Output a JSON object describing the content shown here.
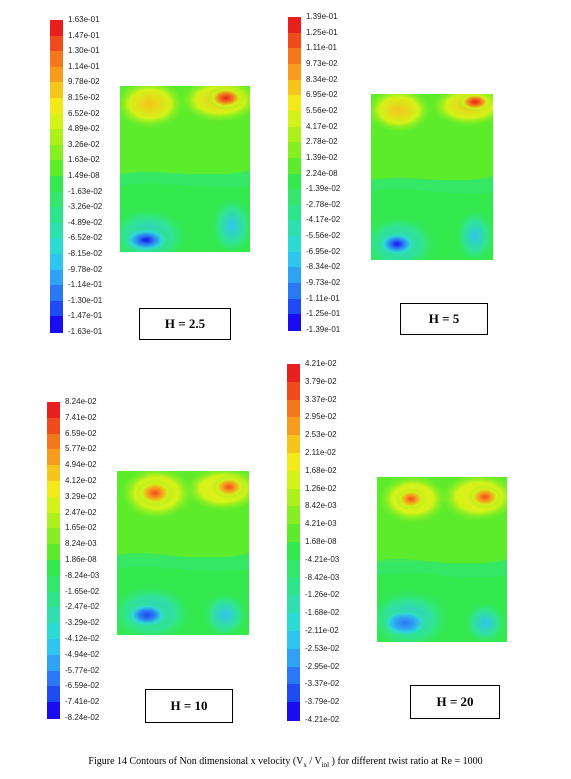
{
  "figure": {
    "caption_prefix": "Figure 14 Contours of Non dimensional x velocity (V",
    "caption_sub1": "x",
    "caption_mid": " / V",
    "caption_sub2": "inl",
    "caption_suffix": " ) for  different twist ratio at Re = 1000"
  },
  "colormap": [
    "#1a0cf0",
    "#1f4cf2",
    "#2a78f4",
    "#2fa2f3",
    "#2ec6ee",
    "#2edbd4",
    "#2fe0ae",
    "#30e48c",
    "#35e66c",
    "#33e94e",
    "#5cec2b",
    "#86ee22",
    "#aef01c",
    "#d3f219",
    "#f1e91a",
    "#f6c51c",
    "#f69c1c",
    "#f3771d",
    "#ef4b1d",
    "#e8201d"
  ],
  "panels": [
    {
      "id": "h2_5",
      "label": "H = 2.5",
      "ticks": [
        "1.63e-01",
        "1.47e-01",
        "1.30e-01",
        "1.14e-01",
        "9.78e-02",
        "8.15e-02",
        "6.52e-02",
        "4.89e-02",
        "3.26e-02",
        "1.63e-02",
        "1.49e-08",
        "-1.63e-02",
        "-3.26e-02",
        "-4.89e-02",
        "-6.52e-02",
        "-8.15e-02",
        "-9.78e-02",
        "-1.14e-01",
        "-1.30e-01",
        "-1.47e-01",
        "-1.63e-01"
      ]
    },
    {
      "id": "h5",
      "label": "H = 5",
      "ticks": [
        "1.39e-01",
        "1.25e-01",
        "1.11e-01",
        "9.73e-02",
        "8.34e-02",
        "6.95e-02",
        "5.56e-02",
        "4.17e-02",
        "2.78e-02",
        "1.39e-02",
        "2.24e-08",
        "-1.39e-02",
        "-2.78e-02",
        "-4.17e-02",
        "-5.56e-02",
        "-6.95e-02",
        "-8.34e-02",
        "-9.73e-02",
        "-1.11e-01",
        "-1.25e-01",
        "-1.39e-01"
      ]
    },
    {
      "id": "h10",
      "label": "H = 10",
      "ticks": [
        "8.24e-02",
        "7.41e-02",
        "6.59e-02",
        "5.77e-02",
        "4.94e-02",
        "4.12e-02",
        "3.29e-02",
        "2.47e-02",
        "1.65e-02",
        "8.24e-03",
        "1.86e-08",
        "-8.24e-03",
        "-1.65e-02",
        "-2.47e-02",
        "-3.29e-02",
        "-4.12e-02",
        "-4.94e-02",
        "-5.77e-02",
        "-6.59e-02",
        "-7.41e-02",
        "-8.24e-02"
      ]
    },
    {
      "id": "h20",
      "label": "H = 20",
      "ticks": [
        "4.21e-02",
        "3.79e-02",
        "3.37e-02",
        "2.95e-02",
        "2.53e-02",
        "2.11e-02",
        "1.68e-02",
        "1.26e-02",
        "8.42e-03",
        "4.21e-03",
        "1.68e-08",
        "-4.21e-03",
        "-8.42e-03",
        "-1.26e-02",
        "-1.68e-02",
        "-2.11e-02",
        "-2.53e-02",
        "-2.95e-02",
        "-3.37e-02",
        "-3.79e-02",
        "-4.21e-02"
      ]
    }
  ]
}
